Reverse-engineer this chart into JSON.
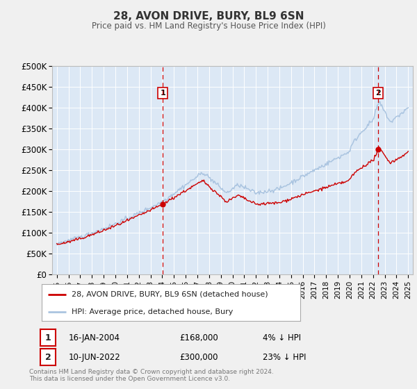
{
  "title": "28, AVON DRIVE, BURY, BL9 6SN",
  "subtitle": "Price paid vs. HM Land Registry's House Price Index (HPI)",
  "ylim": [
    0,
    500000
  ],
  "yticks": [
    0,
    50000,
    100000,
    150000,
    200000,
    250000,
    300000,
    350000,
    400000,
    450000,
    500000
  ],
  "ytick_labels": [
    "£0",
    "£50K",
    "£100K",
    "£150K",
    "£200K",
    "£250K",
    "£300K",
    "£350K",
    "£400K",
    "£450K",
    "£500K"
  ],
  "hpi_color": "#aac4e0",
  "price_color": "#cc0000",
  "vline_color": "#cc0000",
  "marker_color": "#cc0000",
  "transaction1_date": 2004.04,
  "transaction1_price": 168000,
  "transaction1_label": "1",
  "transaction2_date": 2022.44,
  "transaction2_price": 300000,
  "transaction2_label": "2",
  "legend_line1": "28, AVON DRIVE, BURY, BL9 6SN (detached house)",
  "legend_line2": "HPI: Average price, detached house, Bury",
  "annotation1_date": "16-JAN-2004",
  "annotation1_price": "£168,000",
  "annotation1_hpi": "4% ↓ HPI",
  "annotation2_date": "10-JUN-2022",
  "annotation2_price": "£300,000",
  "annotation2_hpi": "23% ↓ HPI",
  "footnote": "Contains HM Land Registry data © Crown copyright and database right 2024.\nThis data is licensed under the Open Government Licence v3.0.",
  "background_color": "#f0f0f0",
  "plot_bg_color": "#dce8f5",
  "grid_color": "#ffffff",
  "title_color": "#333333",
  "subtitle_color": "#555555"
}
